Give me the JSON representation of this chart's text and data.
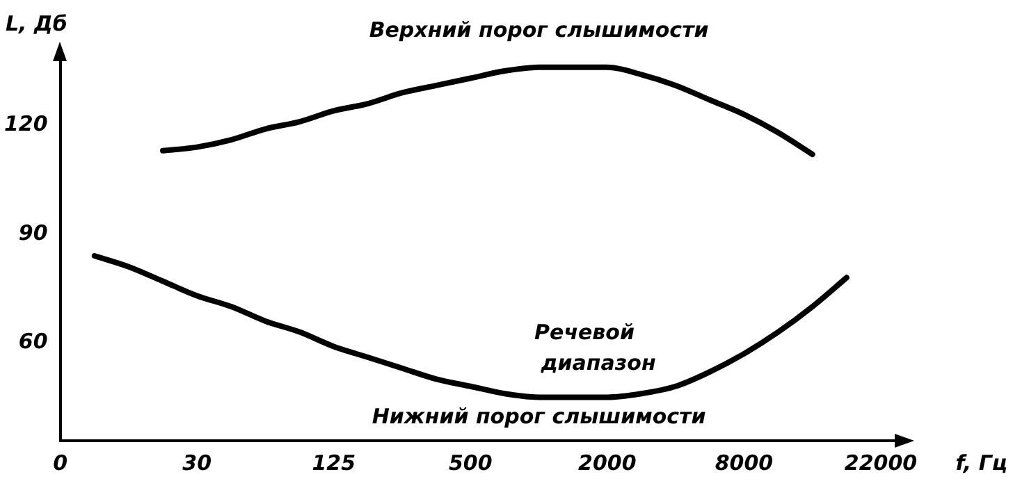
{
  "chart_data": {
    "type": "line",
    "xlabel": "f, Гц",
    "ylabel": "L, Дб",
    "categories": [
      "0",
      null,
      null,
      null,
      "30",
      null,
      null,
      null,
      "125",
      null,
      null,
      null,
      "500",
      null,
      null,
      null,
      "2000",
      null,
      null,
      null,
      "8000",
      null,
      null,
      null,
      "22000"
    ],
    "series": [
      {
        "name": "Верхний порог слышимости",
        "color": "#000000",
        "values": [
          null,
          null,
          null,
          113,
          114,
          116,
          119,
          121,
          124,
          126,
          129,
          131,
          133,
          135,
          136,
          136,
          136,
          134,
          131,
          127,
          123,
          118,
          112,
          null,
          null
        ]
      },
      {
        "name": "Нижний порог слышимости",
        "color": "#000000",
        "values": [
          null,
          84,
          81,
          77,
          73,
          70,
          66,
          63,
          59,
          56,
          53,
          50,
          48,
          46,
          45,
          45,
          45,
          46,
          48,
          52,
          57,
          63,
          70,
          78,
          null
        ]
      }
    ],
    "annotations": [
      "Речевой диапазон"
    ],
    "ylim": [
      33,
      140
    ],
    "yticks": [
      60,
      90,
      120
    ],
    "grid": false,
    "legend": false,
    "marker": "none",
    "line_style": "solid"
  }
}
